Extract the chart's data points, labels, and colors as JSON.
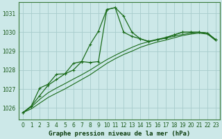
{
  "title": "Graphe pression niveau de la mer (hPa)",
  "background_color": "#cce8e8",
  "grid_color": "#a8cccc",
  "line_color": "#1a6b1a",
  "x_values": [
    0,
    1,
    2,
    3,
    4,
    5,
    6,
    7,
    8,
    9,
    10,
    11,
    12,
    13,
    14,
    15,
    16,
    17,
    18,
    19,
    20,
    21,
    22,
    23
  ],
  "x_labels": [
    "0",
    "1",
    "2",
    "3",
    "4",
    "5",
    "6",
    "7",
    "8",
    "9",
    "10",
    "11",
    "12",
    "13",
    "14",
    "15",
    "16",
    "17",
    "18",
    "19",
    "20",
    "21",
    "22",
    "23"
  ],
  "line1_jagged": [
    1025.75,
    1026.1,
    1026.65,
    1027.2,
    1027.5,
    1027.8,
    1028.35,
    1028.45,
    1029.35,
    1030.05,
    1031.2,
    1031.3,
    1030.85,
    1030.0,
    1029.65,
    1029.5,
    1029.6,
    1029.7,
    1029.85,
    1030.0,
    1030.0,
    1030.0,
    1029.95,
    1029.6
  ],
  "line2_jagged": [
    1025.75,
    1026.1,
    1027.05,
    1027.25,
    1027.78,
    1027.8,
    1028.0,
    1028.45,
    1028.4,
    1028.45,
    1031.2,
    1031.3,
    1030.0,
    1029.78,
    1029.65,
    1029.52,
    1029.62,
    1029.72,
    1029.86,
    1030.0,
    1030.0,
    1030.0,
    1029.95,
    1029.6
  ],
  "line3_smooth": [
    1025.75,
    1026.05,
    1026.45,
    1026.8,
    1027.05,
    1027.28,
    1027.52,
    1027.75,
    1028.0,
    1028.28,
    1028.55,
    1028.78,
    1029.0,
    1029.2,
    1029.38,
    1029.5,
    1029.6,
    1029.68,
    1029.78,
    1029.88,
    1029.95,
    1030.0,
    1029.95,
    1029.58
  ],
  "line4_smooth": [
    1025.75,
    1025.95,
    1026.25,
    1026.55,
    1026.78,
    1027.0,
    1027.25,
    1027.5,
    1027.75,
    1028.05,
    1028.35,
    1028.6,
    1028.82,
    1029.0,
    1029.2,
    1029.35,
    1029.48,
    1029.58,
    1029.7,
    1029.82,
    1029.9,
    1029.95,
    1029.9,
    1029.55
  ],
  "ylim_min": 1025.4,
  "ylim_max": 1031.6,
  "yticks": [
    1026,
    1027,
    1028,
    1029,
    1030,
    1031
  ],
  "title_fontsize": 6.5,
  "tick_fontsize": 5.5
}
